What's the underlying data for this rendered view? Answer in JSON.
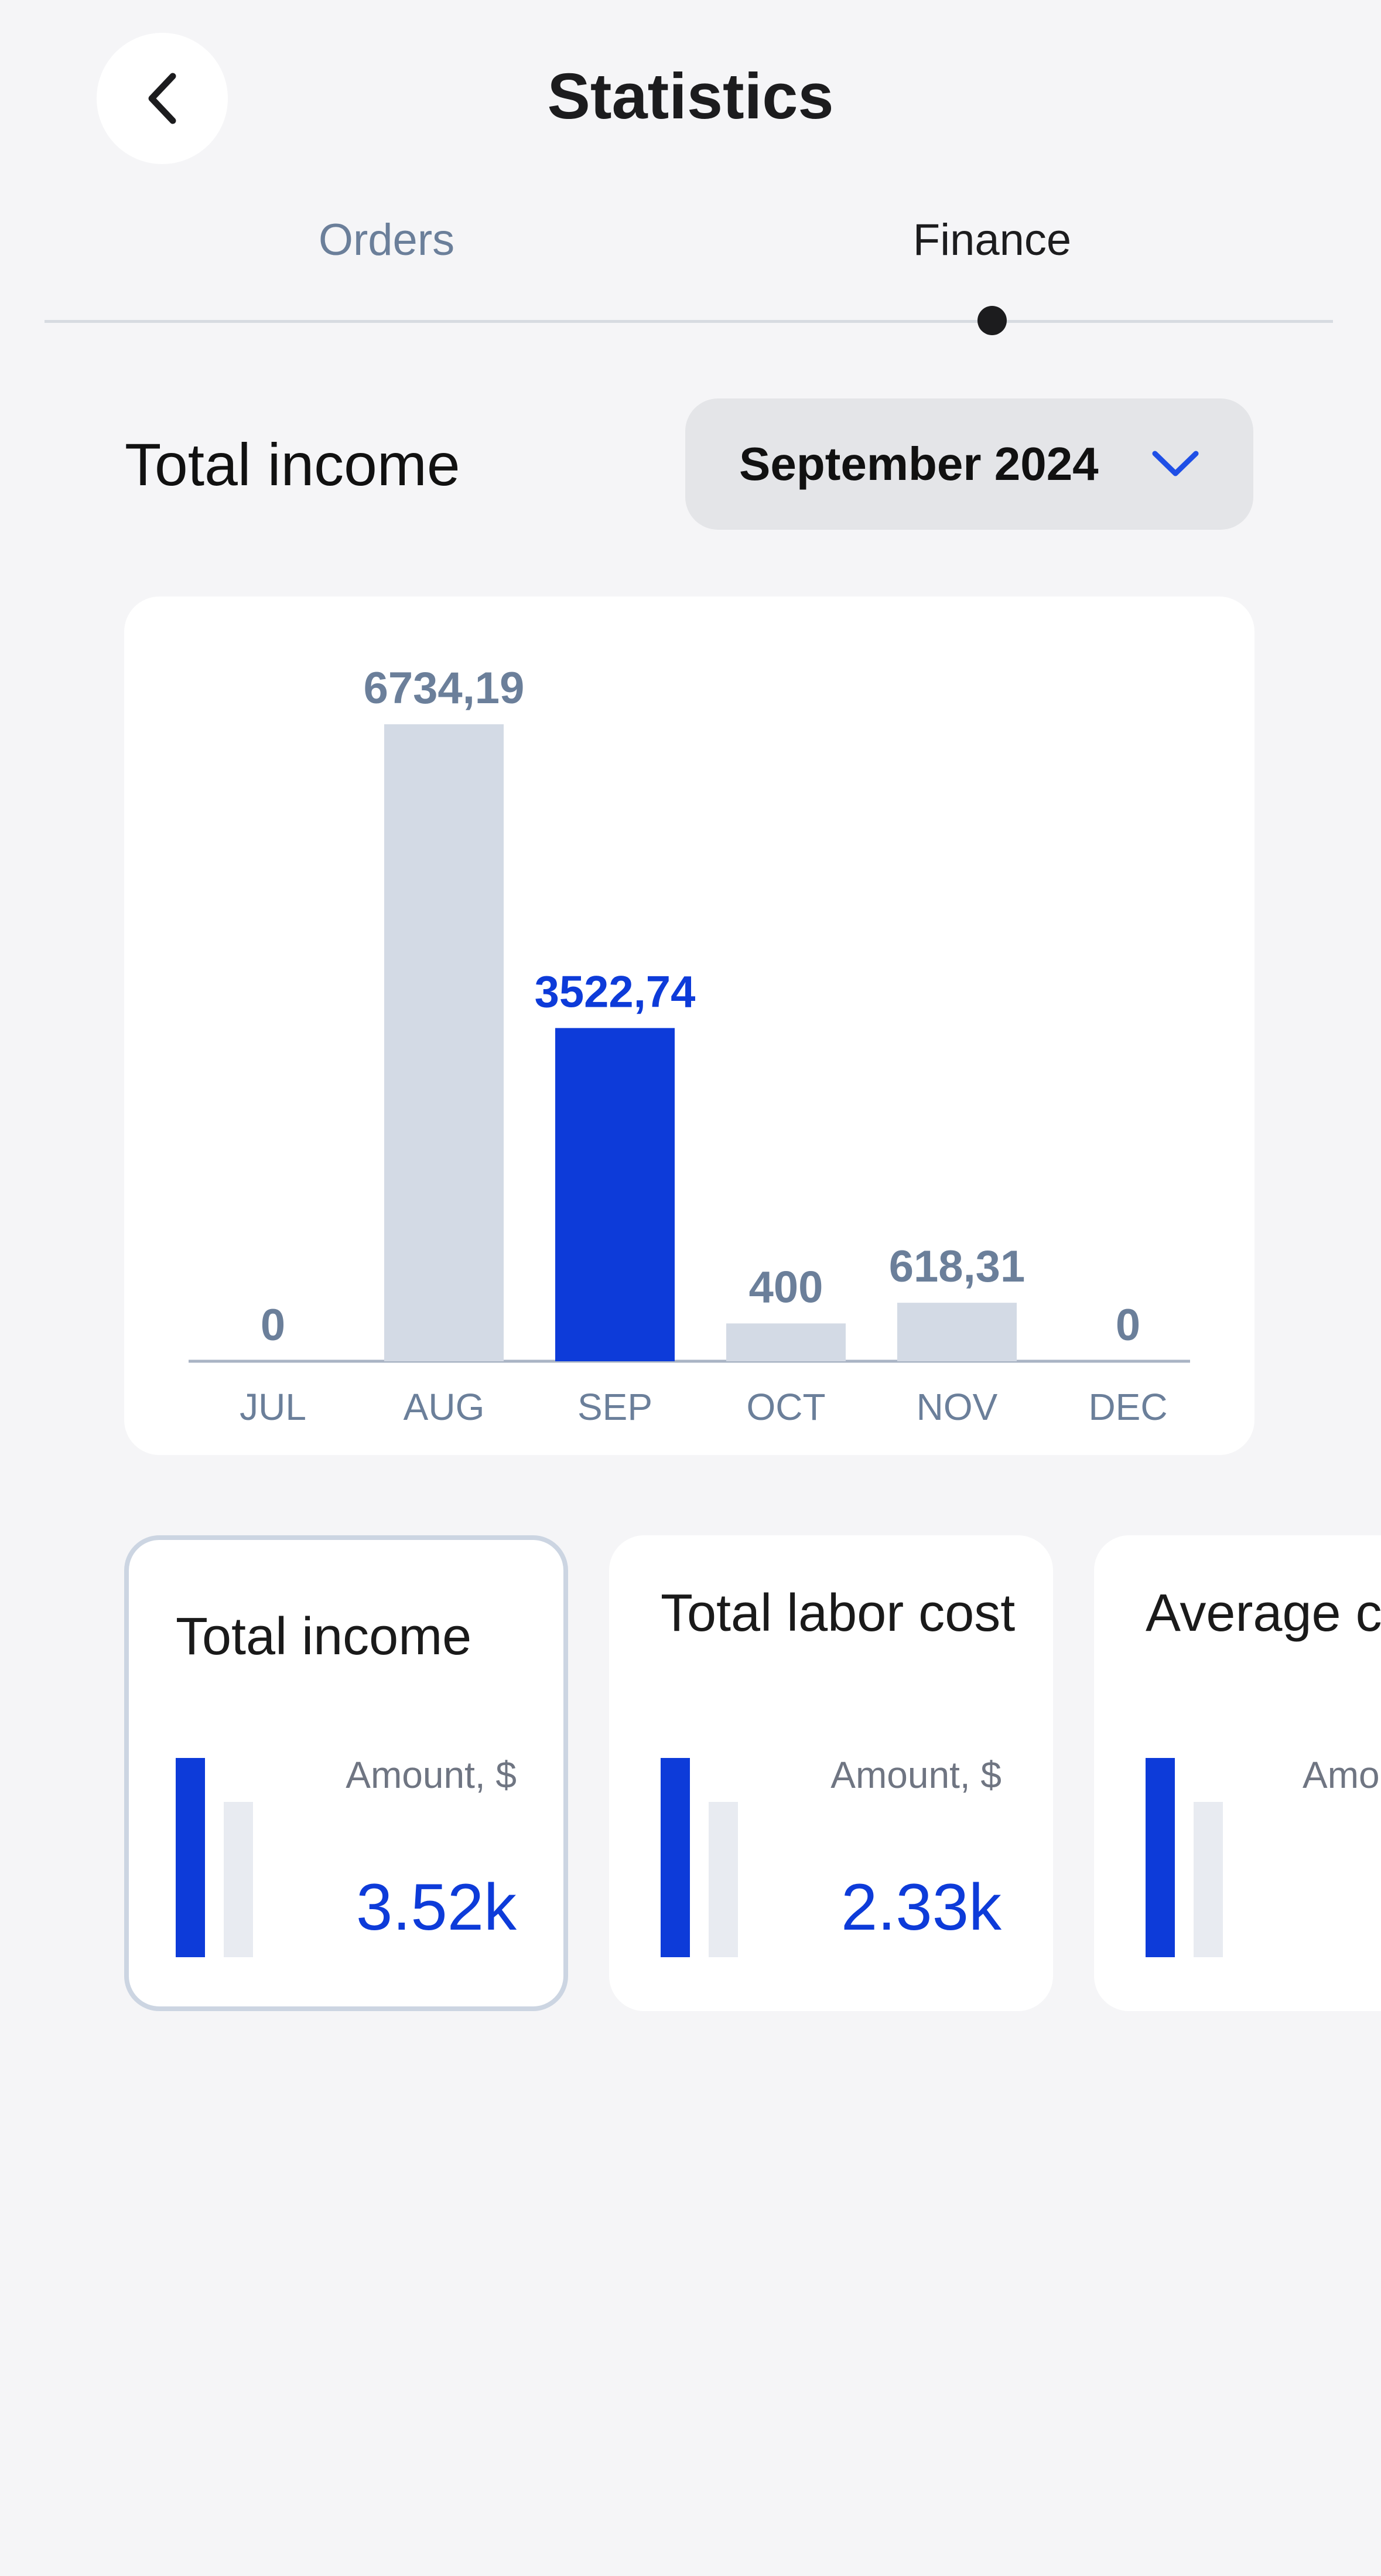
{
  "header": {
    "title": "Statistics"
  },
  "tabs": [
    {
      "label": "Orders",
      "active": false
    },
    {
      "label": "Finance",
      "active": true
    }
  ],
  "section": {
    "title": "Total income",
    "period_label": "September 2024"
  },
  "colors": {
    "accent": "#0d3bd9",
    "bar_inactive": "#d3dae5",
    "label_inactive": "#6b7f9a"
  },
  "chart_data": {
    "type": "bar",
    "categories": [
      "JUL",
      "AUG",
      "SEP",
      "OCT",
      "NOV",
      "DEC"
    ],
    "values": [
      0,
      6734.19,
      3522.74,
      400,
      618.31,
      0
    ],
    "value_labels": [
      "0",
      "6734,19",
      "3522,74",
      "400",
      "618,31",
      "0"
    ],
    "highlighted_category": "SEP",
    "title": "",
    "xlabel": "",
    "ylabel": "",
    "grid": false
  },
  "cards": [
    {
      "title": "Total income",
      "amount_label": "Amount, $",
      "amount": "3.52k",
      "selected": true
    },
    {
      "title": "Total labor cost",
      "amount_label": "Amount, $",
      "amount": "2.33k",
      "selected": false
    },
    {
      "title": "Average check",
      "amount_label": "Amount, $",
      "amount": "",
      "selected": false
    }
  ],
  "icons": {
    "back": "chevron-left-icon",
    "dropdown": "chevron-down-icon"
  }
}
